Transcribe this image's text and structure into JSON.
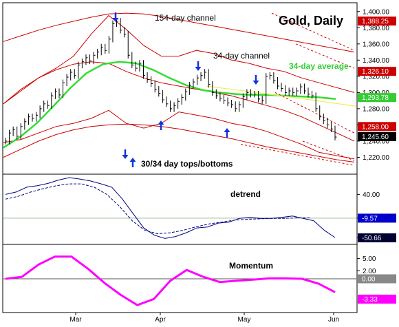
{
  "colors": {
    "background": "#ffffff",
    "frame": "#000000",
    "price_bars": "#000000",
    "channel_154": "#cc0000",
    "channel_34": "#cc0000",
    "average_34": "#33dd33",
    "trendline": "#eeee55",
    "arrows": "#1133dd",
    "detrend_line": "#000080",
    "detrend_avg": "#000080",
    "momentum": "#ff00ff",
    "zero_line": "#555555",
    "tag_154": "#cc0000",
    "tag_34": "#cc0000",
    "tag_avg": "#33cc33",
    "tag_last": "#000000",
    "tag_detrend1": "#0000cc",
    "tag_detrend2": "#000033",
    "tag_mom_zero": "#888888",
    "tag_mom": "#ff00ff"
  },
  "chart_data": {
    "type": "line",
    "title": "Gold, Daily",
    "x_labels": [
      "Mar",
      "Apr",
      "May",
      "Jun"
    ],
    "annotations": {
      "channel_154": "154-day channel",
      "channel_34": "34-day channel",
      "average_34": "34-day average",
      "tops_bottoms": "30/34 day tops/bottoms",
      "detrend": "detrend",
      "momentum": "Momentum"
    },
    "price_panel": {
      "ylim": [
        1200,
        1410
      ],
      "ticks": [
        "1,400.00",
        "1,380.00",
        "1,360.00",
        "1,340.00",
        "1,320.00",
        "1,300.00",
        "1,280.00",
        "1,260.00",
        "1,240.00",
        "1,220.00"
      ],
      "last_value_tags": [
        "1,388.25",
        "1,326.10",
        "1,293.78",
        "1,258.00",
        "1,245.60"
      ],
      "closes": [
        1240,
        1250,
        1254,
        1246,
        1258,
        1264,
        1270,
        1268,
        1272,
        1280,
        1286,
        1284,
        1296,
        1301,
        1297,
        1312,
        1319,
        1325,
        1321,
        1334,
        1338,
        1343,
        1339,
        1346,
        1350,
        1356,
        1352,
        1366,
        1385,
        1388,
        1377,
        1372,
        1346,
        1334,
        1330,
        1336,
        1321,
        1316,
        1311,
        1304,
        1299,
        1291,
        1286,
        1280,
        1284,
        1289,
        1294,
        1301,
        1309,
        1313,
        1318,
        1321,
        1325,
        1310,
        1300,
        1296,
        1293,
        1290,
        1287,
        1285,
        1280,
        1285,
        1295,
        1300,
        1298,
        1298,
        1292,
        1290,
        1320,
        1321,
        1315,
        1308,
        1305,
        1300,
        1302,
        1300,
        1302,
        1307,
        1302,
        1298,
        1296,
        1280,
        1270,
        1265,
        1260,
        1255,
        1245
      ],
      "series": [
        {
          "name": "154-day channel upper",
          "values": [
            1363,
            1370,
            1377,
            1383,
            1388,
            1393,
            1397,
            1398,
            1397,
            1394,
            1390,
            1386,
            1382,
            1378,
            1374,
            1370,
            1366,
            1362,
            1358,
            1354,
            1350
          ]
        },
        {
          "name": "154-day channel mid",
          "values": [
            1286,
            1304,
            1318,
            1328,
            1335,
            1338,
            1336,
            1326,
            1318,
            1312,
            1308,
            1304,
            1300,
            1296,
            1290,
            1284,
            1278,
            1270,
            1260,
            1250,
            1240
          ]
        },
        {
          "name": "154-day channel lower",
          "values": [
            1220,
            1230,
            1240,
            1248,
            1254,
            1258,
            1260,
            1261,
            1260,
            1258,
            1255,
            1251,
            1247,
            1243,
            1238,
            1233,
            1229,
            1225,
            1221,
            1217,
            1214
          ]
        },
        {
          "name": "34-day channel upper",
          "values": [
            1286,
            1302,
            1318,
            1330,
            1345,
            1372,
            1395,
            1378,
            1358,
            1345,
            1345,
            1352,
            1348,
            1340,
            1336,
            1330,
            1326,
            1318,
            1312,
            1306,
            1300
          ]
        },
        {
          "name": "34-day channel lower",
          "values": [
            1238,
            1242,
            1250,
            1258,
            1262,
            1268,
            1278,
            1262,
            1256,
            1262,
            1276,
            1272,
            1268,
            1262,
            1258,
            1252,
            1244,
            1236,
            1226,
            1222,
            1218
          ]
        },
        {
          "name": "34-day average",
          "values": [
            1232,
            1245,
            1262,
            1283,
            1305,
            1324,
            1335,
            1338,
            1336,
            1328,
            1318,
            1309,
            1303,
            1300,
            1298,
            1297,
            1297,
            1296,
            1295,
            1294,
            1292
          ]
        },
        {
          "name": "trendline",
          "values": [
            1308,
            1296,
            1283
          ]
        }
      ]
    },
    "detrend_panel": {
      "ylim": [
        -60,
        75
      ],
      "ticks": [
        "40.00",
        "-9.57",
        "-50.66"
      ],
      "last_value_tags": [
        "-9.57",
        "-50.66"
      ],
      "values": [
        40,
        45,
        55,
        58,
        63,
        70,
        75,
        72,
        68,
        62,
        55,
        30,
        0,
        -30,
        -45,
        -52,
        -48,
        -40,
        -30,
        -28,
        -20,
        -18,
        -10,
        -8,
        -10,
        -10,
        -8,
        -5,
        -10,
        -15,
        -35,
        -50
      ],
      "average": [
        30,
        36,
        45,
        52,
        58,
        62,
        62,
        55,
        40,
        15,
        -15,
        -35,
        -42,
        -40,
        -35,
        -28,
        -22,
        -18,
        -14,
        -12,
        -11,
        -10,
        -10,
        -9,
        -9
      ]
    },
    "momentum_panel": {
      "ylim": [
        -8,
        8
      ],
      "ticks": [
        "5.00",
        "2.00",
        "0.00",
        "-3.33"
      ],
      "last_value_tags": [
        "0.00",
        "-3.33"
      ],
      "values": [
        0,
        0.5,
        3.5,
        5.5,
        5.5,
        2.5,
        -1,
        -4,
        -6.5,
        -5,
        -0.5,
        2.2,
        0.5,
        -0.8,
        -0.5,
        -0.2,
        0.1,
        0.1,
        0,
        -1.2,
        -3.3
      ]
    }
  }
}
